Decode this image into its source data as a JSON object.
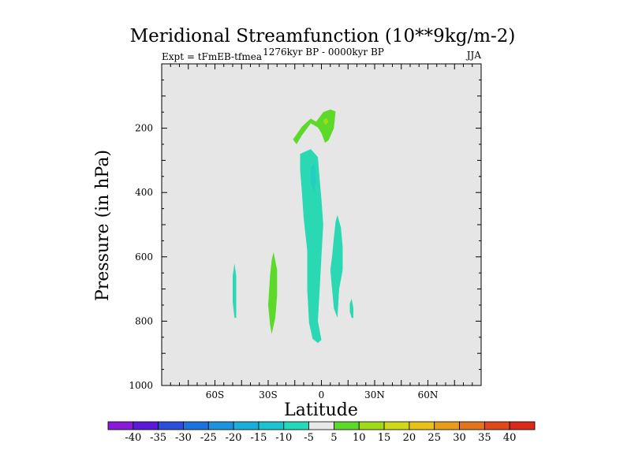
{
  "chart_data": {
    "type": "contour",
    "title": "Meridional Streamfunction (10**9kg/m-2)",
    "subtitle_left": "Expt = tFmEB-tfmea",
    "subtitle_center": "1276kyr BP - 0000kyr BP",
    "subtitle_right": "JJA",
    "xlabel": "Latitude",
    "ylabel": "Pressure (in hPa)",
    "xlim": [
      -90,
      90
    ],
    "ylim": [
      1000,
      0
    ],
    "x_ticks": [
      {
        "value": -60,
        "label": "60S"
      },
      {
        "value": -30,
        "label": "30S"
      },
      {
        "value": 0,
        "label": "0"
      },
      {
        "value": 30,
        "label": "30N"
      },
      {
        "value": 60,
        "label": "60N"
      }
    ],
    "y_ticks": [
      {
        "value": 200,
        "label": "200"
      },
      {
        "value": 400,
        "label": "400"
      },
      {
        "value": 600,
        "label": "600"
      },
      {
        "value": 800,
        "label": "800"
      },
      {
        "value": 1000,
        "label": "1000"
      }
    ],
    "background_color": "#e6e6e6",
    "contour_regions": [
      {
        "name": "upper-positive-cell",
        "level": 5,
        "color": "#5dd92a",
        "points": [
          [
            -14,
            250
          ],
          [
            -16,
            235
          ],
          [
            -11,
            195
          ],
          [
            -6,
            170
          ],
          [
            -3,
            180
          ],
          [
            1,
            150
          ],
          [
            5,
            142
          ],
          [
            8,
            148
          ],
          [
            7,
            200
          ],
          [
            4,
            238
          ],
          [
            2,
            245
          ],
          [
            0,
            215
          ],
          [
            -2,
            198
          ],
          [
            -6,
            185
          ],
          [
            -8,
            200
          ],
          [
            -11,
            222
          ]
        ]
      },
      {
        "name": "upper-positive-core",
        "level": 10,
        "color": "#a0db1a",
        "points": [
          [
            1,
            175
          ],
          [
            3,
            168
          ],
          [
            4,
            182
          ],
          [
            2,
            190
          ]
        ]
      },
      {
        "name": "central-negative-cell",
        "level": -5,
        "color": "#2bd8b4",
        "points": [
          [
            -12,
            280
          ],
          [
            -6,
            265
          ],
          [
            -2,
            290
          ],
          [
            -1,
            360
          ],
          [
            0,
            420
          ],
          [
            1,
            500
          ],
          [
            0,
            600
          ],
          [
            -1,
            700
          ],
          [
            -2,
            800
          ],
          [
            0,
            858
          ],
          [
            -2,
            868
          ],
          [
            -5,
            855
          ],
          [
            -7,
            805
          ],
          [
            -8,
            700
          ],
          [
            -8,
            580
          ],
          [
            -10,
            480
          ],
          [
            -11,
            400
          ],
          [
            -12,
            330
          ]
        ]
      },
      {
        "name": "central-negative-core",
        "level": -10,
        "color": "#22cfc0",
        "points": [
          [
            -6,
            320
          ],
          [
            -4,
            310
          ],
          [
            -3,
            360
          ],
          [
            -4,
            400
          ],
          [
            -6,
            370
          ]
        ]
      },
      {
        "name": "northern-negative-cell",
        "level": -5,
        "color": "#2bd8b4",
        "points": [
          [
            9,
            470
          ],
          [
            11,
            510
          ],
          [
            12,
            570
          ],
          [
            12,
            640
          ],
          [
            10,
            700
          ],
          [
            9,
            790
          ],
          [
            7,
            760
          ],
          [
            6,
            700
          ],
          [
            5,
            640
          ],
          [
            6,
            600
          ],
          [
            7,
            540
          ],
          [
            8,
            490
          ]
        ]
      },
      {
        "name": "southern-positive-cell",
        "level": 5,
        "color": "#5dd92a",
        "points": [
          [
            -27,
            585
          ],
          [
            -25,
            640
          ],
          [
            -25,
            720
          ],
          [
            -26,
            790
          ],
          [
            -28,
            840
          ],
          [
            -29,
            810
          ],
          [
            -30,
            750
          ],
          [
            -29,
            660
          ],
          [
            -28,
            610
          ]
        ]
      },
      {
        "name": "far-south-negative-cell",
        "level": -5,
        "color": "#2bd8b4",
        "points": [
          [
            -49,
            620
          ],
          [
            -48,
            660
          ],
          [
            -48,
            740
          ],
          [
            -48,
            790
          ],
          [
            -49,
            790
          ],
          [
            -50,
            740
          ],
          [
            -50,
            660
          ]
        ]
      },
      {
        "name": "small-north-negative-cell",
        "level": -5,
        "color": "#2bd8b4",
        "points": [
          [
            17,
            730
          ],
          [
            18,
            760
          ],
          [
            18,
            790
          ],
          [
            17,
            790
          ],
          [
            16,
            770
          ],
          [
            16,
            745
          ]
        ]
      }
    ],
    "colorbar": {
      "labels": [
        "-40",
        "-35",
        "-30",
        "-25",
        "-20",
        "-15",
        "-10",
        "-5",
        "5",
        "10",
        "15",
        "20",
        "25",
        "30",
        "35",
        "40"
      ],
      "colors": [
        "#8a1ad9",
        "#5b1ad9",
        "#2a4fdc",
        "#1a74e0",
        "#1a93e0",
        "#1aaedd",
        "#1ac4d0",
        "#22d9b8",
        "#e8e8e8",
        "#5dd92a",
        "#a0db1a",
        "#cfd91a",
        "#e8c21a",
        "#e89d1a",
        "#e4741a",
        "#e0481a",
        "#dc2a1a"
      ]
    }
  }
}
